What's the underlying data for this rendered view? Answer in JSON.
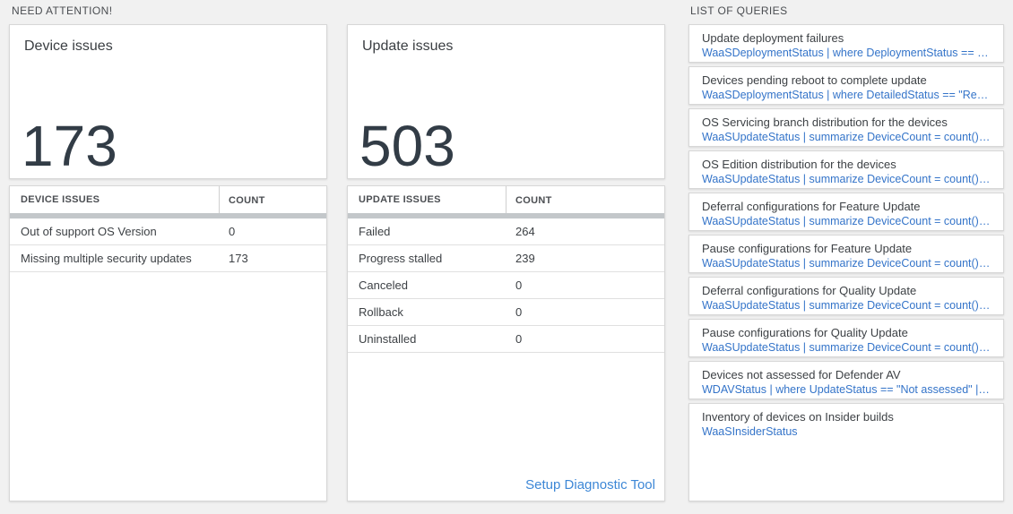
{
  "page": {
    "need_attention_label": "NEED ATTENTION!",
    "list_of_queries_label": "LIST OF QUERIES"
  },
  "device_issues": {
    "title": "Device issues",
    "count": "173",
    "table": {
      "headers": [
        "DEVICE ISSUES",
        "COUNT"
      ],
      "rows": [
        {
          "label": "Out of support OS Version",
          "count": "0"
        },
        {
          "label": "Missing multiple security updates",
          "count": "173"
        }
      ]
    }
  },
  "update_issues": {
    "title": "Update issues",
    "count": "503",
    "table": {
      "headers": [
        "UPDATE ISSUES",
        "COUNT"
      ],
      "rows": [
        {
          "label": "Failed",
          "count": "264"
        },
        {
          "label": "Progress stalled",
          "count": "239"
        },
        {
          "label": "Canceled",
          "count": "0"
        },
        {
          "label": "Rollback",
          "count": "0"
        },
        {
          "label": "Uninstalled",
          "count": "0"
        }
      ]
    },
    "setup_link_label": "Setup Diagnostic Tool"
  },
  "queries": {
    "items": [
      {
        "title": "Update deployment failures",
        "query": "WaaSDeploymentStatus | where DeploymentStatus == \"Failed\" |..."
      },
      {
        "title": "Devices pending reboot to complete update",
        "query": "WaaSDeploymentStatus | where DetailedStatus == \"Reboot pend..."
      },
      {
        "title": "OS Servicing branch distribution for the devices",
        "query": "WaaSUpdateStatus | summarize DeviceCount = count() by OSSer..."
      },
      {
        "title": "OS Edition distribution for the devices",
        "query": "WaaSUpdateStatus | summarize DeviceCount = count() by OSEdit..."
      },
      {
        "title": "Deferral configurations for Feature Update",
        "query": "WaaSUpdateStatus | summarize DeviceCount = count() by Featur..."
      },
      {
        "title": "Pause configurations for Feature Update",
        "query": "WaaSUpdateStatus | summarize DeviceCount = count() by Featur..."
      },
      {
        "title": "Deferral configurations for Quality Update",
        "query": "WaaSUpdateStatus | summarize DeviceCount = count() by Qualit..."
      },
      {
        "title": "Pause configurations for Quality Update",
        "query": "WaaSUpdateStatus | summarize DeviceCount = count() by Qualit..."
      },
      {
        "title": "Devices not assessed for Defender AV",
        "query": "WDAVStatus | where UpdateStatus == \"Not assessed\" | render ta..."
      },
      {
        "title": "Inventory of devices on Insider builds",
        "query": "WaaSInsiderStatus"
      }
    ]
  },
  "colors": {
    "page_background": "#f1f1f1",
    "query_blue": "#3474c9",
    "link_blue": "#3d87d6",
    "number_text": "#323c46",
    "header_bar_gray": "#c3c7ca"
  }
}
